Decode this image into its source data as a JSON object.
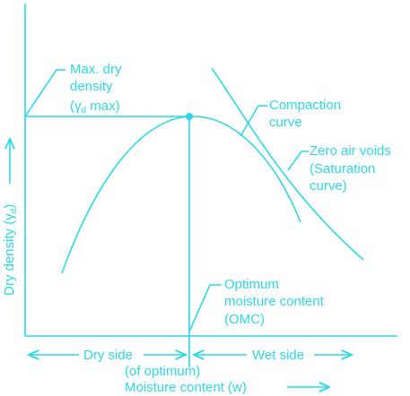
{
  "colors": {
    "accent": "#2bd9e6"
  },
  "labels": {
    "max_dry_density_l1": "Max. dry",
    "max_dry_density_l2": "density",
    "gamma_open": "(γ",
    "gamma_sub": "d",
    "gamma_close": " max)",
    "compaction_l1": "Compaction",
    "compaction_l2": "curve",
    "zero_air_l1": "Zero air voids",
    "zero_air_l2": "(Saturation",
    "zero_air_l3": "curve)",
    "omc_l1": "Optimum",
    "omc_l2": "moisture content",
    "omc_l3": "(OMC)",
    "dry_side": "Dry side",
    "wet_side": "Wet side",
    "of_optimum": "(of optimum)",
    "x_axis": "Moisture content (w)",
    "y_axis_main": "Dry density (γ",
    "y_axis_sub": "d",
    "y_axis_close": ")"
  }
}
